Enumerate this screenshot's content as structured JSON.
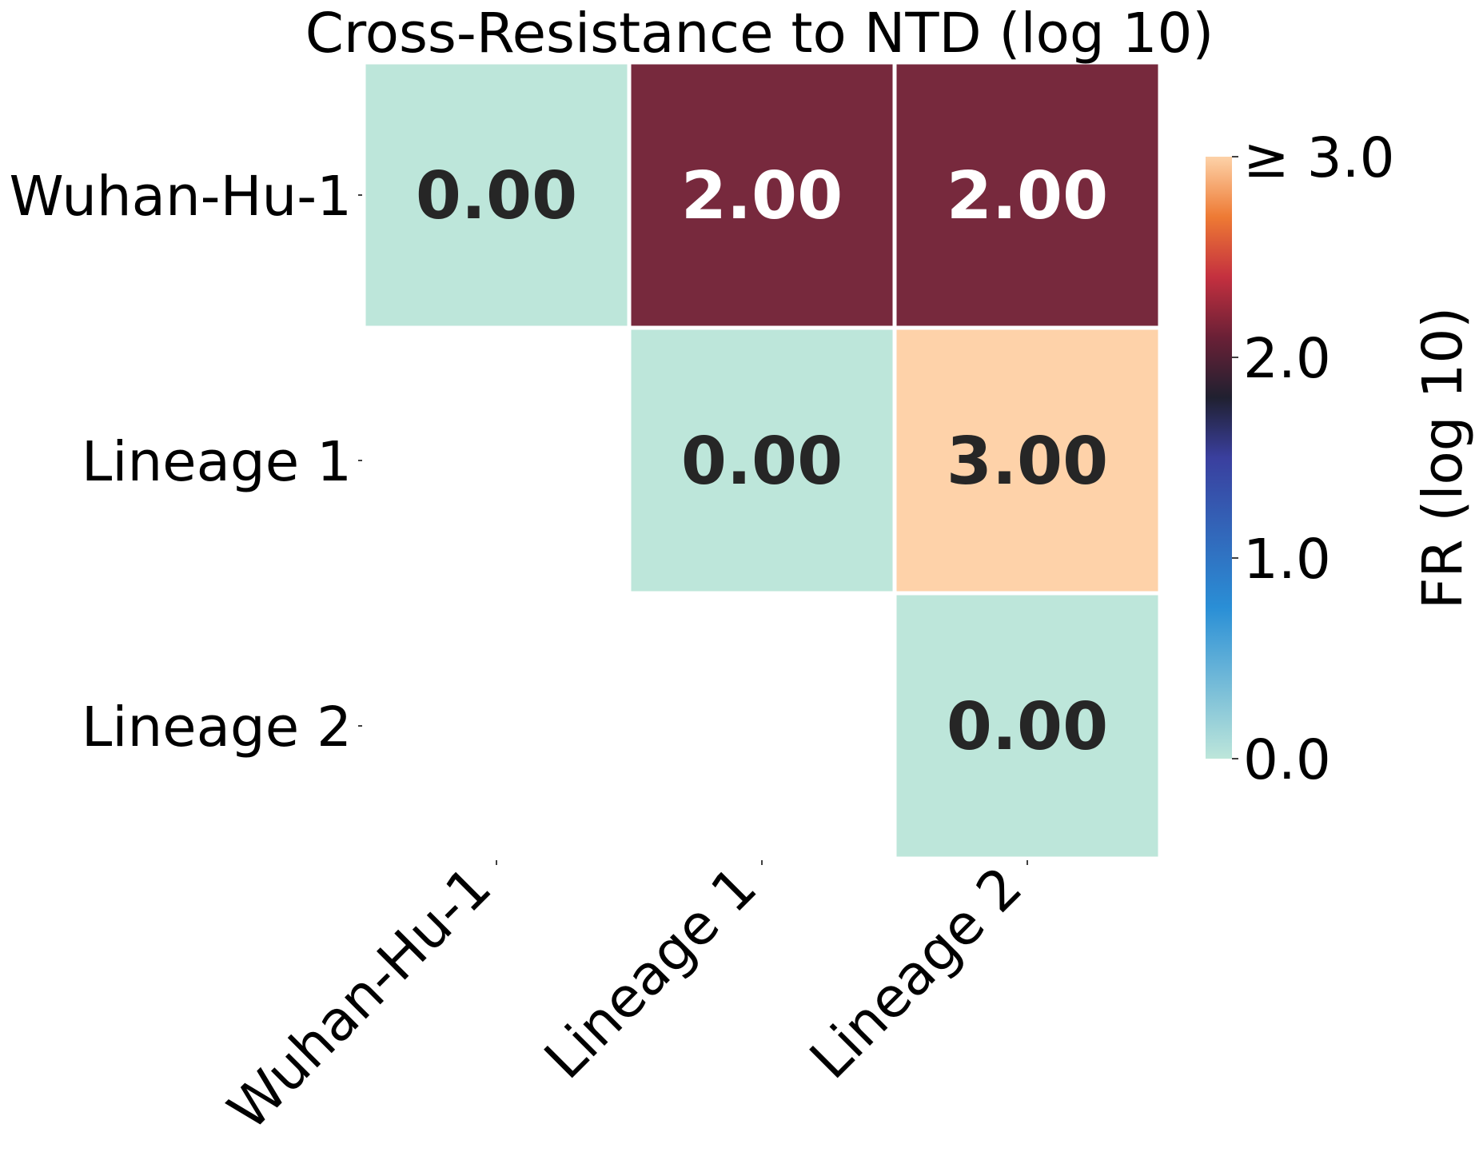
{
  "chart_data": {
    "type": "heatmap",
    "title": "Cross-Resistance to NTD (log 10)",
    "rows": [
      "Wuhan-Hu-1",
      "Lineage 1",
      "Lineage 2"
    ],
    "columns": [
      "Wuhan-Hu-1",
      "Lineage 1",
      "Lineage 2"
    ],
    "values": [
      [
        0.0,
        2.0,
        2.0
      ],
      [
        null,
        0.0,
        3.0
      ],
      [
        null,
        null,
        0.0
      ]
    ],
    "value_labels": [
      [
        "0.00",
        "2.00",
        "2.00"
      ],
      [
        null,
        "0.00",
        "3.00"
      ],
      [
        null,
        null,
        "0.00"
      ]
    ],
    "mask": "lower triangle hidden",
    "colorbar": {
      "label": "FR (log 10)",
      "range": [
        0,
        3
      ],
      "ticks": [
        0,
        1,
        2,
        3
      ],
      "tick_labels": [
        "0.0",
        "1.0",
        "2.0",
        "≥ 3.0"
      ],
      "colormap": "icefire",
      "stops": [
        {
          "v": 0.0,
          "color": "#bde6da"
        },
        {
          "v": 0.25,
          "color": "#2a8fd6"
        },
        {
          "v": 0.5,
          "color": "#3a3f9e"
        },
        {
          "v": 0.6,
          "color": "#202030"
        },
        {
          "v": 0.7,
          "color": "#6a2036"
        },
        {
          "v": 0.8,
          "color": "#c4303f"
        },
        {
          "v": 0.9,
          "color": "#ee7a34"
        },
        {
          "v": 1.0,
          "color": "#fdd2a8"
        }
      ]
    },
    "colors": {
      "cell_0": "#bde6da",
      "cell_2": "#77293d",
      "cell_3": "#fed2a9",
      "text_dark": "#262626",
      "text_light": "#ffffff"
    }
  }
}
